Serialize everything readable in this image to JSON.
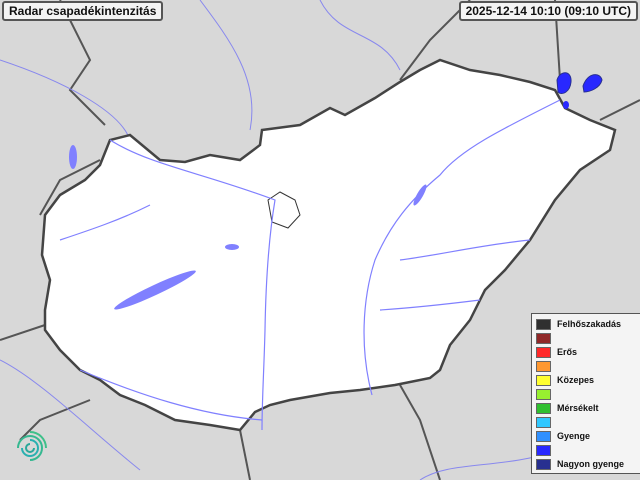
{
  "title": "Radar csapadékintenzitás",
  "timestamp": "2025-12-14 10:10 (09:10 UTC)",
  "legend": [
    {
      "label": "Felhőszakadás",
      "color": "#303030"
    },
    {
      "label": "",
      "color": "#902828"
    },
    {
      "label": "Erős",
      "color": "#ff2828"
    },
    {
      "label": "",
      "color": "#ff9830"
    },
    {
      "label": "Közepes",
      "color": "#ffff30"
    },
    {
      "label": "",
      "color": "#98f030"
    },
    {
      "label": "Mérsékelt",
      "color": "#30c030"
    },
    {
      "label": "",
      "color": "#30c8ff"
    },
    {
      "label": "Gyenge",
      "color": "#3090ff"
    },
    {
      "label": "",
      "color": "#2828ff"
    },
    {
      "label": "Nagyon gyenge",
      "color": "#283090"
    }
  ],
  "colors": {
    "background": "#d8d8d8",
    "country": "#ffffff",
    "water": "#8080ff",
    "border": "#444444"
  },
  "icons": {
    "logo": "spiral-logo-icon"
  }
}
